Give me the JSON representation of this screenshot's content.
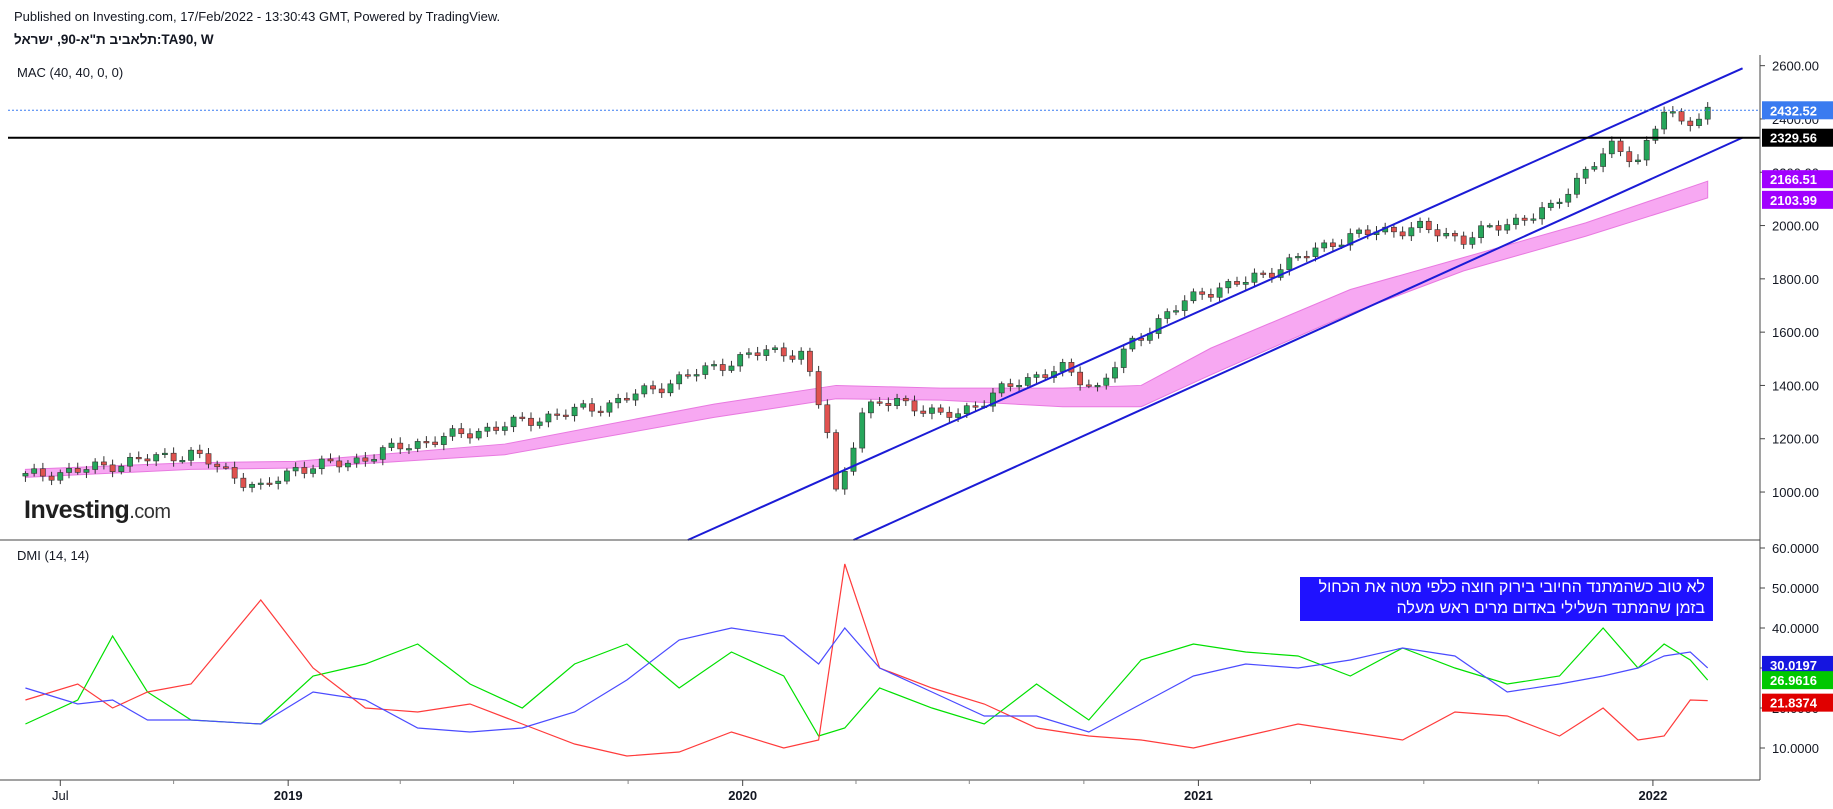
{
  "header": {
    "published": "Published on Investing.com, 17/Feb/2022 - 13:30:43 GMT, Powered by TradingView.",
    "symbol": "תלאביב ת\"א-90, ישראל:TA90, W",
    "mac_label": "MAC (40, 40, 0, 0)",
    "dmi_label": "DMI (14, 14)",
    "logo_main": "Investing",
    "logo_suffix": ".com"
  },
  "annotation": {
    "line1": "לא טוב כשהמתנד החיובי בירוק חוצה כלפי מטה את הכחול",
    "line2": "בזמן שהמתנד השלילי באדום מרים ראש מעלה"
  },
  "colors": {
    "up": "#26a65b",
    "down": "#e0524f",
    "channel": "#1b1bd6",
    "mac_band": "#f7a8f2",
    "plus_di": "#00e000",
    "minus_di": "#ff3b3b",
    "adx": "#4b4bff",
    "last_price_tag": "#3a7bf0",
    "mac_tag": "#a100ff"
  },
  "chart_data": [
    {
      "type": "candlestick",
      "title": "תלאביב ת\"א-90, ישראל:TA90, W",
      "y_axis_ticks": [
        "2600.00",
        "2400.00",
        "2200.00",
        "2000.00",
        "1800.00",
        "1600.00",
        "1400.00",
        "1200.00",
        "1000.00"
      ],
      "x_axis_ticks": [
        "Jul",
        "2019",
        "2020",
        "2021",
        "2022"
      ],
      "ylim": [
        820,
        2640
      ],
      "price_tags": [
        {
          "label": "2432.52",
          "value": 2432.52,
          "role": "last_price"
        },
        {
          "label": "2329.56",
          "value": 2329.56,
          "role": "horizontal_line"
        },
        {
          "label": "2166.51",
          "value": 2166.51,
          "role": "mac_upper"
        },
        {
          "label": "2103.99",
          "value": 2103.99,
          "role": "mac_lower"
        }
      ],
      "horizontal_line": 2329.56,
      "channel_upper": [
        [
          "2019-11-18",
          820
        ],
        [
          "2022-03-14",
          2590
        ]
      ],
      "channel_lower": [
        [
          "2020-03-30",
          820
        ],
        [
          "2022-03-14",
          2330
        ]
      ],
      "close_series": {
        "x": [
          "2018-06-04",
          "2018-07-16",
          "2018-09-03",
          "2018-10-15",
          "2018-12-10",
          "2019-01-07",
          "2019-02-18",
          "2019-04-01",
          "2019-05-13",
          "2019-06-24",
          "2019-08-05",
          "2019-09-16",
          "2019-10-28",
          "2019-12-09",
          "2020-01-20",
          "2020-02-17",
          "2020-02-24",
          "2020-03-09",
          "2020-03-16",
          "2020-03-23",
          "2020-04-06",
          "2020-05-04",
          "2020-06-08",
          "2020-07-13",
          "2020-08-10",
          "2020-09-14",
          "2020-10-12",
          "2020-11-09",
          "2020-12-07",
          "2021-01-04",
          "2021-02-08",
          "2021-03-15",
          "2021-04-19",
          "2021-05-24",
          "2021-06-28",
          "2021-08-02",
          "2021-09-06",
          "2021-10-11",
          "2021-11-08",
          "2021-11-29",
          "2021-12-20",
          "2022-01-10",
          "2022-01-24",
          "2022-02-14"
        ],
        "close": [
          1060,
          1080,
          1120,
          1145,
          1010,
          1090,
          1110,
          1170,
          1210,
          1250,
          1290,
          1330,
          1400,
          1470,
          1530,
          1520,
          1430,
          1230,
          1000,
          1080,
          1300,
          1350,
          1280,
          1340,
          1420,
          1460,
          1390,
          1560,
          1670,
          1750,
          1790,
          1860,
          1940,
          1980,
          1990,
          1950,
          2010,
          2060,
          2210,
          2290,
          2250,
          2430,
          2380,
          2432.52
        ]
      },
      "mac_band": {
        "x": [
          "2018-06-04",
          "2018-10-15",
          "2019-01-07",
          "2019-06-24",
          "2019-12-09",
          "2020-03-16",
          "2020-06-08",
          "2020-09-14",
          "2020-11-16",
          "2021-01-11",
          "2021-05-03",
          "2021-08-02",
          "2021-11-08",
          "2022-02-14"
        ],
        "upper": [
          1085,
          1110,
          1115,
          1180,
          1330,
          1400,
          1390,
          1390,
          1400,
          1540,
          1760,
          1880,
          2010,
          2166.51
        ],
        "lower": [
          1055,
          1085,
          1090,
          1140,
          1280,
          1350,
          1345,
          1320,
          1320,
          1440,
          1670,
          1830,
          1960,
          2103.99
        ]
      }
    },
    {
      "type": "line",
      "title": "DMI (14, 14)",
      "y_axis_ticks": [
        "60.0000",
        "50.0000",
        "40.0000",
        "30.0000",
        "20.0000",
        "10.0000"
      ],
      "ylim": [
        2,
        62
      ],
      "value_tags": [
        {
          "label": "30.0197",
          "value": 30.0197,
          "series": "ADX"
        },
        {
          "label": "26.9616",
          "value": 26.9616,
          "series": "+DI"
        },
        {
          "label": "21.8374",
          "value": 21.8374,
          "series": "-DI"
        }
      ],
      "x": [
        "2018-06-04",
        "2018-07-16",
        "2018-08-13",
        "2018-09-10",
        "2018-10-15",
        "2018-12-10",
        "2019-01-21",
        "2019-03-04",
        "2019-04-15",
        "2019-05-27",
        "2019-07-08",
        "2019-08-19",
        "2019-09-30",
        "2019-11-11",
        "2019-12-23",
        "2020-02-03",
        "2020-03-02",
        "2020-03-23",
        "2020-04-20",
        "2020-06-01",
        "2020-07-13",
        "2020-08-24",
        "2020-10-05",
        "2020-11-16",
        "2020-12-28",
        "2021-02-08",
        "2021-03-22",
        "2021-05-03",
        "2021-06-14",
        "2021-07-26",
        "2021-09-06",
        "2021-10-18",
        "2021-11-22",
        "2021-12-20",
        "2022-01-10",
        "2022-01-31",
        "2022-02-14"
      ],
      "series": [
        {
          "name": "+DI",
          "values": [
            16,
            22,
            38,
            24,
            17,
            16,
            28,
            31,
            36,
            26,
            20,
            31,
            36,
            25,
            34,
            28,
            13,
            15,
            25,
            20,
            16,
            26,
            17,
            32,
            36,
            34,
            33,
            28,
            35,
            30,
            26,
            28,
            40,
            30,
            36,
            32,
            26.9616
          ]
        },
        {
          "name": "-DI",
          "values": [
            22,
            26,
            20,
            24,
            26,
            47,
            30,
            20,
            19,
            21,
            16,
            11,
            8,
            9,
            14,
            10,
            12,
            56,
            30,
            25,
            21,
            15,
            13,
            12,
            10,
            13,
            16,
            14,
            12,
            19,
            18,
            13,
            20,
            12,
            13,
            22,
            21.8374
          ]
        },
        {
          "name": "ADX",
          "values": [
            25,
            21,
            22,
            17,
            17,
            16,
            24,
            22,
            15,
            14,
            15,
            19,
            27,
            37,
            40,
            38,
            31,
            40,
            30,
            24,
            18,
            18,
            14,
            21,
            28,
            31,
            30,
            32,
            35,
            33,
            24,
            26,
            28,
            30,
            33,
            34,
            30.0197
          ]
        }
      ]
    }
  ]
}
